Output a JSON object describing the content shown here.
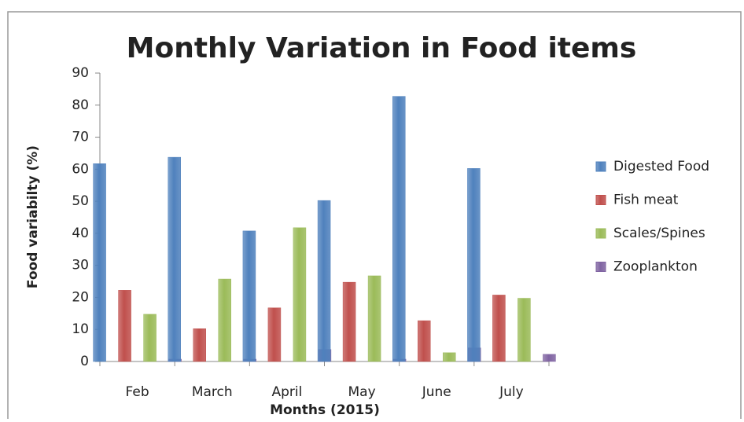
{
  "chart_data": {
    "type": "bar",
    "title": "Monthly Variation in Food items",
    "x_label": "Months (2015)",
    "y_label": "Food variabilty  (%)",
    "categories": [
      "Feb",
      "March",
      "April",
      "May",
      "June",
      "July"
    ],
    "series": [
      {
        "name": "Digested Food",
        "color": "#4f81bd",
        "values": [
          61,
          63,
          40,
          49.5,
          82,
          59.5
        ]
      },
      {
        "name": "Fish meat",
        "color": "#c0504d",
        "values": [
          21.5,
          9.5,
          16,
          24,
          12,
          20
        ]
      },
      {
        "name": "Scales/Spines",
        "color": "#9bbb59",
        "values": [
          14,
          25,
          41,
          26,
          2,
          19
        ]
      },
      {
        "name": "Zooplankton",
        "color": "#8064a2",
        "values": [
          0,
          0,
          3,
          0,
          3.5,
          1.5
        ]
      }
    ],
    "ylim": [
      0,
      90
    ],
    "yticks": [
      0,
      10,
      20,
      30,
      40,
      50,
      60,
      70,
      80,
      90
    ],
    "grid": false,
    "legend": "right"
  }
}
